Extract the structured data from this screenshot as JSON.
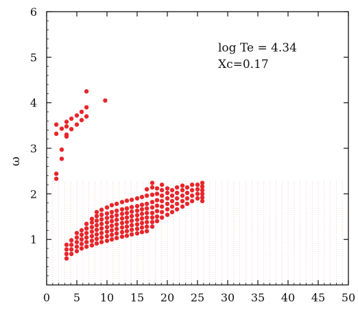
{
  "chart_data": {
    "type": "scatter",
    "title": "",
    "xlabel": "",
    "ylabel": "ω",
    "xlim": [
      0,
      50
    ],
    "ylim": [
      0,
      6
    ],
    "x_ticks": [
      0,
      5,
      10,
      15,
      20,
      25,
      30,
      35,
      40,
      45,
      50
    ],
    "y_ticks": [
      1,
      2,
      3,
      4,
      5,
      6
    ],
    "grid": false,
    "annotations": [
      "log Te = 4.34",
      "Xc=0.17"
    ],
    "colors": {
      "points": "#e8262b",
      "faint_grid": "#f3c9c9",
      "axis": "#111111"
    },
    "background_grid": {
      "x": [
        1,
        2,
        3,
        4,
        5,
        6,
        7,
        8,
        9,
        10,
        11,
        12,
        13,
        14,
        15,
        16,
        17,
        18,
        19,
        20,
        21,
        22,
        23,
        24,
        25,
        26,
        27,
        28,
        29,
        30,
        31,
        32,
        33,
        34,
        35,
        36,
        37,
        38,
        39,
        40,
        41,
        42,
        43,
        44,
        45,
        46,
        47,
        48,
        49,
        50
      ],
      "y_min": 0.0,
      "y_max": 2.3
    },
    "series": [
      {
        "values": [
          {
            "x": 1.6,
            "y": 2.33
          },
          {
            "x": 1.6,
            "y": 2.44
          },
          {
            "x": 1.6,
            "y": 3.32
          },
          {
            "x": 1.6,
            "y": 3.52
          },
          {
            "x": 2.5,
            "y": 2.77
          },
          {
            "x": 2.5,
            "y": 2.97
          },
          {
            "x": 2.5,
            "y": 3.43
          },
          {
            "x": 3.3,
            "y": 3.26
          },
          {
            "x": 3.3,
            "y": 3.3
          },
          {
            "x": 3.3,
            "y": 3.48
          },
          {
            "x": 3.3,
            "y": 3.58
          },
          {
            "x": 4.1,
            "y": 3.42
          },
          {
            "x": 4.1,
            "y": 3.65
          },
          {
            "x": 5.0,
            "y": 3.52
          },
          {
            "x": 5.0,
            "y": 3.72
          },
          {
            "x": 5.8,
            "y": 3.62
          },
          {
            "x": 5.8,
            "y": 3.8
          },
          {
            "x": 6.6,
            "y": 3.7
          },
          {
            "x": 6.6,
            "y": 3.9
          },
          {
            "x": 6.6,
            "y": 4.25
          },
          {
            "x": 9.7,
            "y": 4.05
          }
        ]
      },
      {
        "values": [
          {
            "x": 3.3,
            "y": 0.58
          },
          {
            "x": 3.3,
            "y": 0.68
          },
          {
            "x": 3.3,
            "y": 0.78
          },
          {
            "x": 3.3,
            "y": 0.88
          },
          {
            "x": 4.1,
            "y": 0.68
          },
          {
            "x": 4.1,
            "y": 0.78
          },
          {
            "x": 4.1,
            "y": 0.88
          },
          {
            "x": 4.1,
            "y": 0.98
          },
          {
            "x": 5.0,
            "y": 0.74
          },
          {
            "x": 5.0,
            "y": 0.84
          },
          {
            "x": 5.0,
            "y": 0.94
          },
          {
            "x": 5.0,
            "y": 1.04
          },
          {
            "x": 5.0,
            "y": 1.14
          },
          {
            "x": 5.8,
            "y": 0.8
          },
          {
            "x": 5.8,
            "y": 0.9
          },
          {
            "x": 5.8,
            "y": 1.0
          },
          {
            "x": 5.8,
            "y": 1.1
          },
          {
            "x": 5.8,
            "y": 1.2
          },
          {
            "x": 6.6,
            "y": 0.84
          },
          {
            "x": 6.6,
            "y": 0.94
          },
          {
            "x": 6.6,
            "y": 1.04
          },
          {
            "x": 6.6,
            "y": 1.14
          },
          {
            "x": 6.6,
            "y": 1.24
          },
          {
            "x": 6.6,
            "y": 1.34
          },
          {
            "x": 7.5,
            "y": 0.87
          },
          {
            "x": 7.5,
            "y": 0.97
          },
          {
            "x": 7.5,
            "y": 1.07
          },
          {
            "x": 7.5,
            "y": 1.17
          },
          {
            "x": 7.5,
            "y": 1.27
          },
          {
            "x": 7.5,
            "y": 1.37
          },
          {
            "x": 7.5,
            "y": 1.45
          },
          {
            "x": 8.3,
            "y": 0.91
          },
          {
            "x": 8.3,
            "y": 1.01
          },
          {
            "x": 8.3,
            "y": 1.11
          },
          {
            "x": 8.3,
            "y": 1.21
          },
          {
            "x": 8.3,
            "y": 1.31
          },
          {
            "x": 8.3,
            "y": 1.41
          },
          {
            "x": 8.3,
            "y": 1.51
          },
          {
            "x": 8.3,
            "y": 1.6
          },
          {
            "x": 9.1,
            "y": 0.94
          },
          {
            "x": 9.1,
            "y": 1.04
          },
          {
            "x": 9.1,
            "y": 1.14
          },
          {
            "x": 9.1,
            "y": 1.24
          },
          {
            "x": 9.1,
            "y": 1.34
          },
          {
            "x": 9.1,
            "y": 1.44
          },
          {
            "x": 9.1,
            "y": 1.54
          },
          {
            "x": 9.1,
            "y": 1.65
          },
          {
            "x": 10.0,
            "y": 0.97
          },
          {
            "x": 10.0,
            "y": 1.07
          },
          {
            "x": 10.0,
            "y": 1.17
          },
          {
            "x": 10.0,
            "y": 1.27
          },
          {
            "x": 10.0,
            "y": 1.37
          },
          {
            "x": 10.0,
            "y": 1.47
          },
          {
            "x": 10.0,
            "y": 1.57
          },
          {
            "x": 10.0,
            "y": 1.7
          },
          {
            "x": 10.8,
            "y": 1.0
          },
          {
            "x": 10.8,
            "y": 1.1
          },
          {
            "x": 10.8,
            "y": 1.2
          },
          {
            "x": 10.8,
            "y": 1.3
          },
          {
            "x": 10.8,
            "y": 1.4
          },
          {
            "x": 10.8,
            "y": 1.5
          },
          {
            "x": 10.8,
            "y": 1.6
          },
          {
            "x": 10.8,
            "y": 1.75
          },
          {
            "x": 11.6,
            "y": 1.03
          },
          {
            "x": 11.6,
            "y": 1.13
          },
          {
            "x": 11.6,
            "y": 1.23
          },
          {
            "x": 11.6,
            "y": 1.33
          },
          {
            "x": 11.6,
            "y": 1.43
          },
          {
            "x": 11.6,
            "y": 1.53
          },
          {
            "x": 11.6,
            "y": 1.63
          },
          {
            "x": 11.6,
            "y": 1.78
          },
          {
            "x": 12.5,
            "y": 1.06
          },
          {
            "x": 12.5,
            "y": 1.16
          },
          {
            "x": 12.5,
            "y": 1.26
          },
          {
            "x": 12.5,
            "y": 1.36
          },
          {
            "x": 12.5,
            "y": 1.46
          },
          {
            "x": 12.5,
            "y": 1.56
          },
          {
            "x": 12.5,
            "y": 1.66
          },
          {
            "x": 12.5,
            "y": 1.82
          },
          {
            "x": 13.3,
            "y": 1.08
          },
          {
            "x": 13.3,
            "y": 1.18
          },
          {
            "x": 13.3,
            "y": 1.28
          },
          {
            "x": 13.3,
            "y": 1.38
          },
          {
            "x": 13.3,
            "y": 1.48
          },
          {
            "x": 13.3,
            "y": 1.58
          },
          {
            "x": 13.3,
            "y": 1.68
          },
          {
            "x": 13.3,
            "y": 1.85
          },
          {
            "x": 14.1,
            "y": 1.11
          },
          {
            "x": 14.1,
            "y": 1.21
          },
          {
            "x": 14.1,
            "y": 1.31
          },
          {
            "x": 14.1,
            "y": 1.41
          },
          {
            "x": 14.1,
            "y": 1.51
          },
          {
            "x": 14.1,
            "y": 1.61
          },
          {
            "x": 14.1,
            "y": 1.71
          },
          {
            "x": 14.1,
            "y": 1.87
          },
          {
            "x": 15.0,
            "y": 1.13
          },
          {
            "x": 15.0,
            "y": 1.23
          },
          {
            "x": 15.0,
            "y": 1.33
          },
          {
            "x": 15.0,
            "y": 1.43
          },
          {
            "x": 15.0,
            "y": 1.53
          },
          {
            "x": 15.0,
            "y": 1.63
          },
          {
            "x": 15.0,
            "y": 1.73
          },
          {
            "x": 15.0,
            "y": 1.9
          },
          {
            "x": 15.8,
            "y": 1.16
          },
          {
            "x": 15.8,
            "y": 1.26
          },
          {
            "x": 15.8,
            "y": 1.36
          },
          {
            "x": 15.8,
            "y": 1.46
          },
          {
            "x": 15.8,
            "y": 1.56
          },
          {
            "x": 15.8,
            "y": 1.66
          },
          {
            "x": 15.8,
            "y": 1.76
          },
          {
            "x": 15.8,
            "y": 1.93
          },
          {
            "x": 16.6,
            "y": 1.18
          },
          {
            "x": 16.6,
            "y": 1.28
          },
          {
            "x": 16.6,
            "y": 1.38
          },
          {
            "x": 16.6,
            "y": 1.48
          },
          {
            "x": 16.6,
            "y": 1.58
          },
          {
            "x": 16.6,
            "y": 1.68
          },
          {
            "x": 16.6,
            "y": 1.78
          },
          {
            "x": 16.6,
            "y": 1.96
          },
          {
            "x": 16.6,
            "y": 2.1
          },
          {
            "x": 17.5,
            "y": 1.28
          },
          {
            "x": 17.5,
            "y": 1.38
          },
          {
            "x": 17.5,
            "y": 1.48
          },
          {
            "x": 17.5,
            "y": 1.58
          },
          {
            "x": 17.5,
            "y": 1.7
          },
          {
            "x": 17.5,
            "y": 1.82
          },
          {
            "x": 17.5,
            "y": 1.98
          },
          {
            "x": 17.5,
            "y": 2.14
          },
          {
            "x": 17.5,
            "y": 2.24
          },
          {
            "x": 18.3,
            "y": 1.4
          },
          {
            "x": 18.3,
            "y": 1.5
          },
          {
            "x": 18.3,
            "y": 1.62
          },
          {
            "x": 18.3,
            "y": 1.74
          },
          {
            "x": 18.3,
            "y": 1.86
          },
          {
            "x": 18.3,
            "y": 2.0
          },
          {
            "x": 18.3,
            "y": 2.12
          },
          {
            "x": 19.1,
            "y": 1.48
          },
          {
            "x": 19.1,
            "y": 1.6
          },
          {
            "x": 19.1,
            "y": 1.72
          },
          {
            "x": 19.1,
            "y": 1.84
          },
          {
            "x": 19.1,
            "y": 1.96
          },
          {
            "x": 19.1,
            "y": 2.08
          },
          {
            "x": 19.1,
            "y": 2.2
          },
          {
            "x": 20.0,
            "y": 1.54
          },
          {
            "x": 20.0,
            "y": 1.66
          },
          {
            "x": 20.0,
            "y": 1.78
          },
          {
            "x": 20.0,
            "y": 1.9
          },
          {
            "x": 20.0,
            "y": 2.02
          },
          {
            "x": 20.0,
            "y": 2.12
          },
          {
            "x": 20.8,
            "y": 1.6
          },
          {
            "x": 20.8,
            "y": 1.72
          },
          {
            "x": 20.8,
            "y": 1.84
          },
          {
            "x": 20.8,
            "y": 1.96
          },
          {
            "x": 20.8,
            "y": 2.08
          },
          {
            "x": 21.6,
            "y": 1.66
          },
          {
            "x": 21.6,
            "y": 1.78
          },
          {
            "x": 21.6,
            "y": 1.9
          },
          {
            "x": 21.6,
            "y": 2.02
          },
          {
            "x": 21.6,
            "y": 2.14
          },
          {
            "x": 22.5,
            "y": 1.72
          },
          {
            "x": 22.5,
            "y": 1.84
          },
          {
            "x": 22.5,
            "y": 1.96
          },
          {
            "x": 22.5,
            "y": 2.08
          },
          {
            "x": 22.5,
            "y": 2.18
          },
          {
            "x": 23.3,
            "y": 1.78
          },
          {
            "x": 23.3,
            "y": 1.9
          },
          {
            "x": 23.3,
            "y": 2.02
          },
          {
            "x": 23.3,
            "y": 2.14
          },
          {
            "x": 24.1,
            "y": 1.84
          },
          {
            "x": 24.1,
            "y": 1.96
          },
          {
            "x": 24.1,
            "y": 2.08
          },
          {
            "x": 24.1,
            "y": 2.2
          },
          {
            "x": 25.0,
            "y": 1.9
          },
          {
            "x": 25.0,
            "y": 2.0
          },
          {
            "x": 25.0,
            "y": 2.1
          },
          {
            "x": 25.0,
            "y": 2.2
          },
          {
            "x": 25.8,
            "y": 1.84
          },
          {
            "x": 25.8,
            "y": 1.92
          },
          {
            "x": 25.8,
            "y": 2.0
          },
          {
            "x": 25.8,
            "y": 2.08
          },
          {
            "x": 25.8,
            "y": 2.16
          },
          {
            "x": 25.8,
            "y": 2.24
          }
        ]
      }
    ]
  }
}
